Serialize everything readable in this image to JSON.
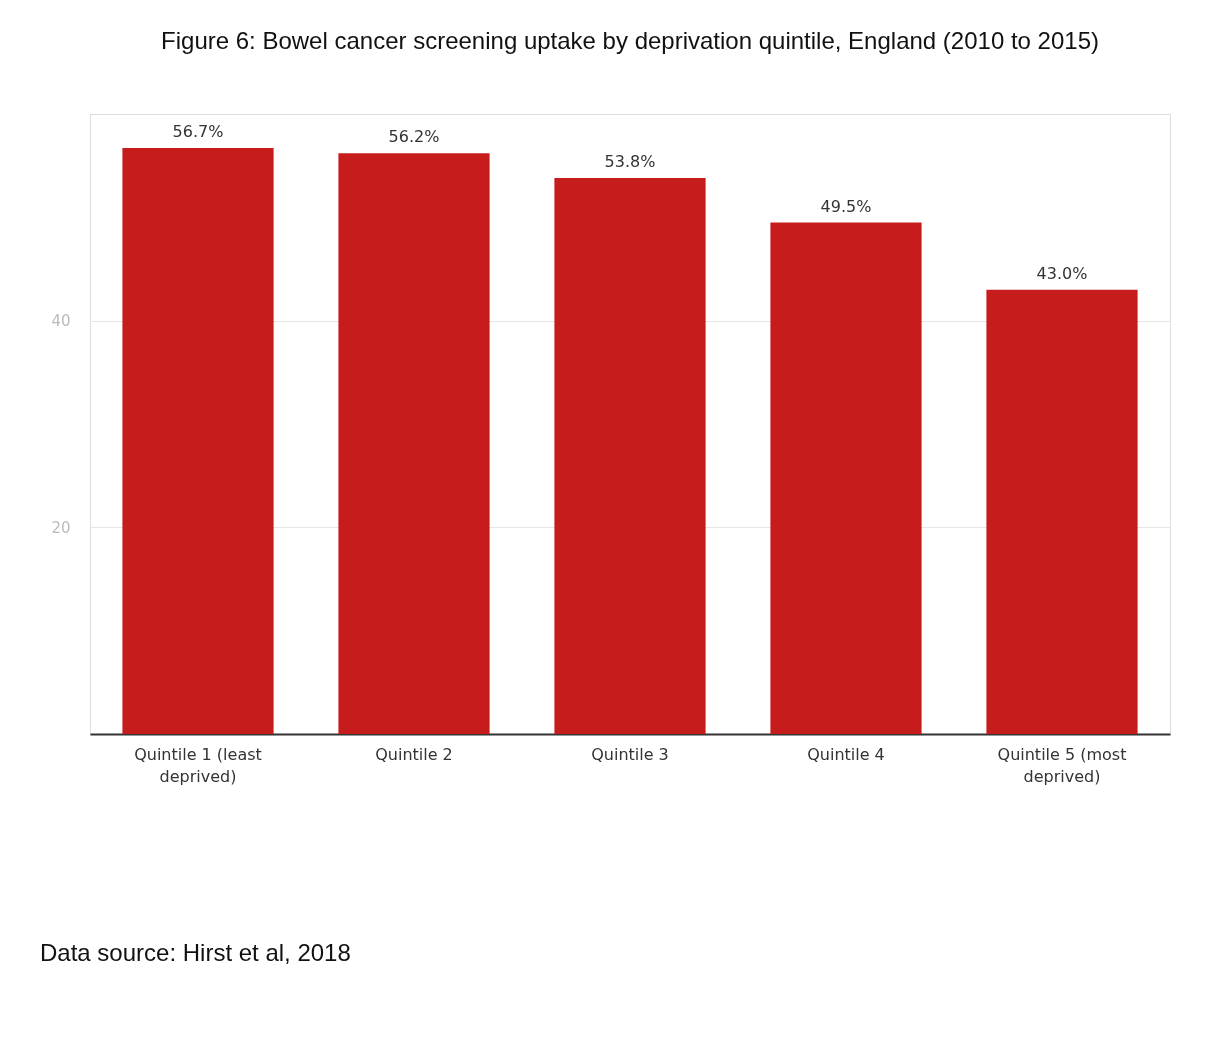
{
  "chart_data": {
    "type": "bar",
    "title": "Figure 6: Bowel cancer screening uptake by deprivation quintile, England (2010 to 2015)",
    "categories": [
      "Quintile 1 (least deprived)",
      "Quintile 2",
      "Quintile 3",
      "Quintile 4",
      "Quintile 5 (most deprived)"
    ],
    "values": [
      56.7,
      56.2,
      53.8,
      49.5,
      43.0
    ],
    "value_labels": [
      "56.7%",
      "56.2%",
      "53.8%",
      "49.5%",
      "43.0%"
    ],
    "color": "#c71c1c",
    "ylim": [
      0,
      60
    ],
    "yticks": [
      20,
      40
    ],
    "grid": "y",
    "annotations": [
      "Data source: Hirst et al, 2018"
    ]
  }
}
